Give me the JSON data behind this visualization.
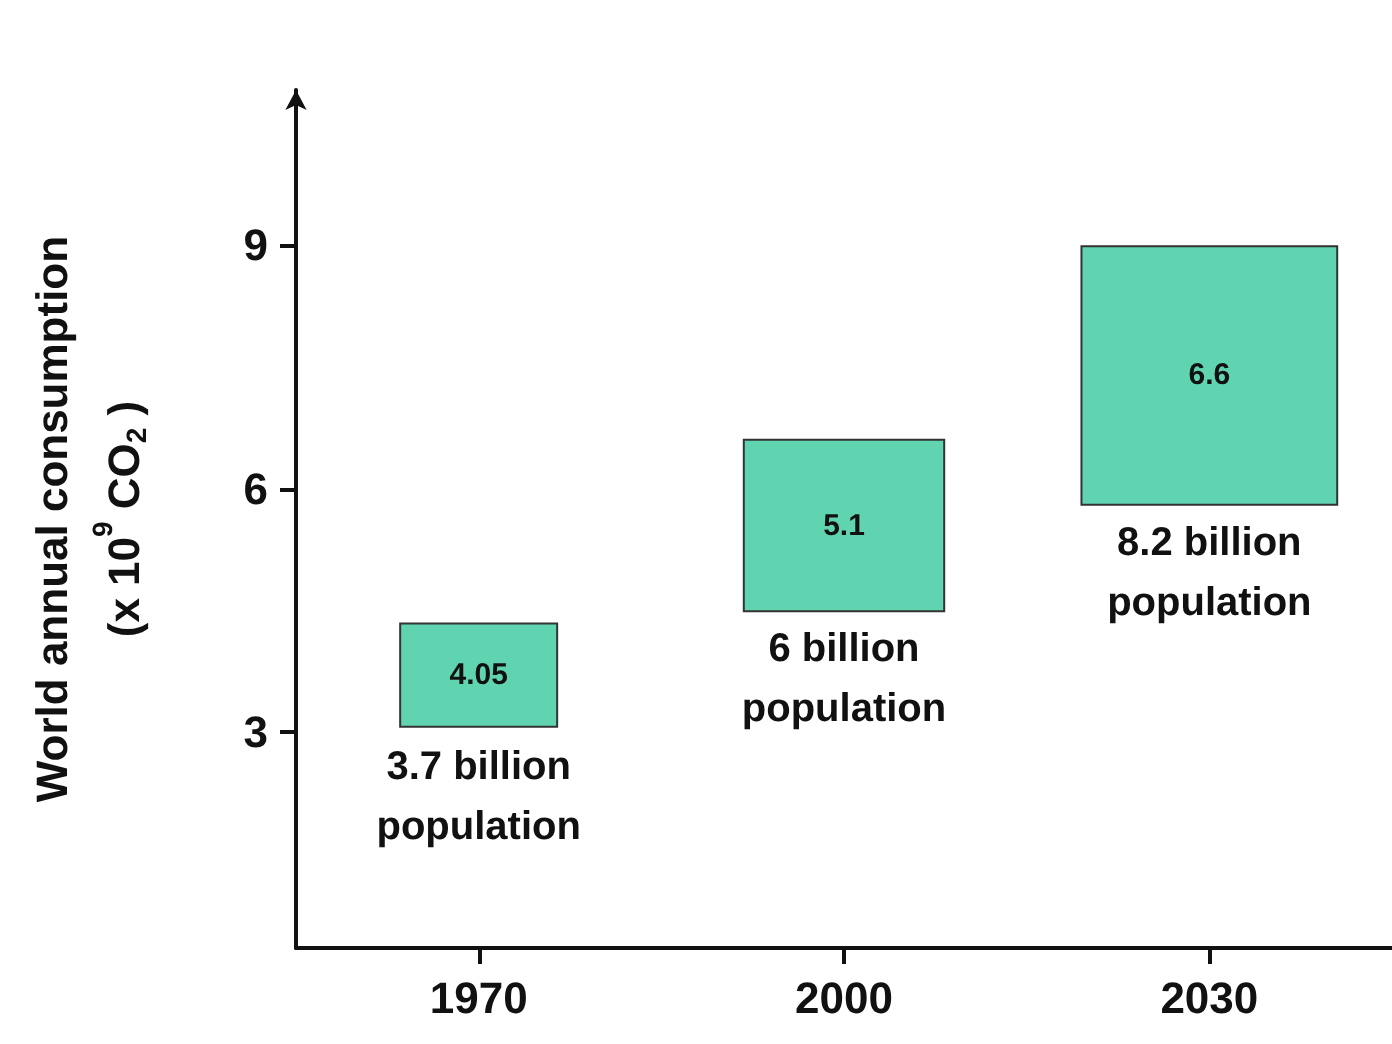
{
  "chart_data": {
    "type": "bar",
    "ylabel": "World annual consumption\n(x 10$^{9}$ CO$_{2}$ )",
    "categories": [
      "1970",
      "2000",
      "2030"
    ],
    "base": [
      3.07,
      4.49,
      5.8
    ],
    "values": [
      1.27,
      2.11,
      3.18
    ],
    "color": "#60d4b0",
    "ylim": [
      0.35,
      10.9
    ],
    "yticks": [
      3,
      6,
      9
    ],
    "grid": false,
    "annotations": [
      "4.05",
      "5.1",
      "6.6",
      {
        "text": "3.7 billion\npopulation",
        "x": "1970",
        "y": 2.95
      },
      {
        "text": "6 billion\npopulation",
        "x": "2000",
        "y": 4.4
      },
      {
        "text": "8.2 billion\npopulation",
        "x": "2030",
        "y": 5.7
      }
    ]
  }
}
